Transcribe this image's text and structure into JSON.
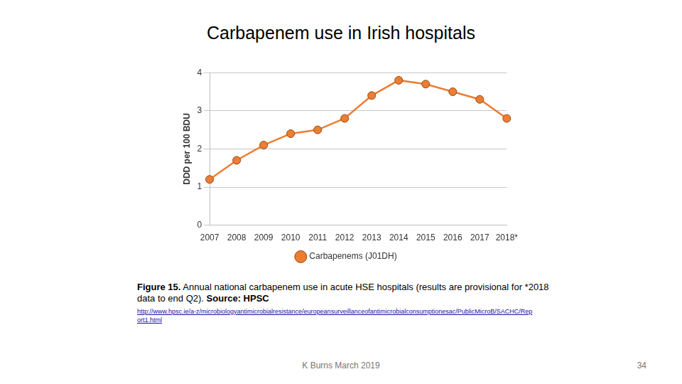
{
  "slide": {
    "title": "Carbapenem use in Irish hospitals",
    "caption_label": "Figure 15.",
    "caption_text": "Annual national carbapenem use in acute HSE hospitals (results are provisional for *2018 data to end Q2).",
    "source_label": "Source:",
    "source": "HPSC",
    "url": "http://www.hpsc.ie/a-z/microbiologyantimicrobialresistance/europeansurveillanceofantimicrobialconsumptionesac/PublicMicroB/SACHC/Report1.html",
    "footer": "K Burns March 2019",
    "page_number": 34
  },
  "chart_data": {
    "type": "line",
    "y_label": "DDD per 100 BDU",
    "categories": [
      "2007",
      "2008",
      "2009",
      "2010",
      "2011",
      "2012",
      "2013",
      "2014",
      "2015",
      "2016",
      "2017",
      "2018*"
    ],
    "series": [
      {
        "name": "Carbapenems (J01DH)",
        "color": "#ed7d31",
        "marker": "circle",
        "values": [
          1.2,
          1.7,
          2.1,
          2.4,
          2.5,
          2.8,
          3.4,
          3.8,
          3.7,
          3.5,
          3.3,
          2.8
        ]
      }
    ],
    "ylim": [
      0,
      4
    ],
    "yticks": [
      0,
      1,
      2,
      3,
      4
    ],
    "grid": true,
    "legend": "bottom"
  }
}
